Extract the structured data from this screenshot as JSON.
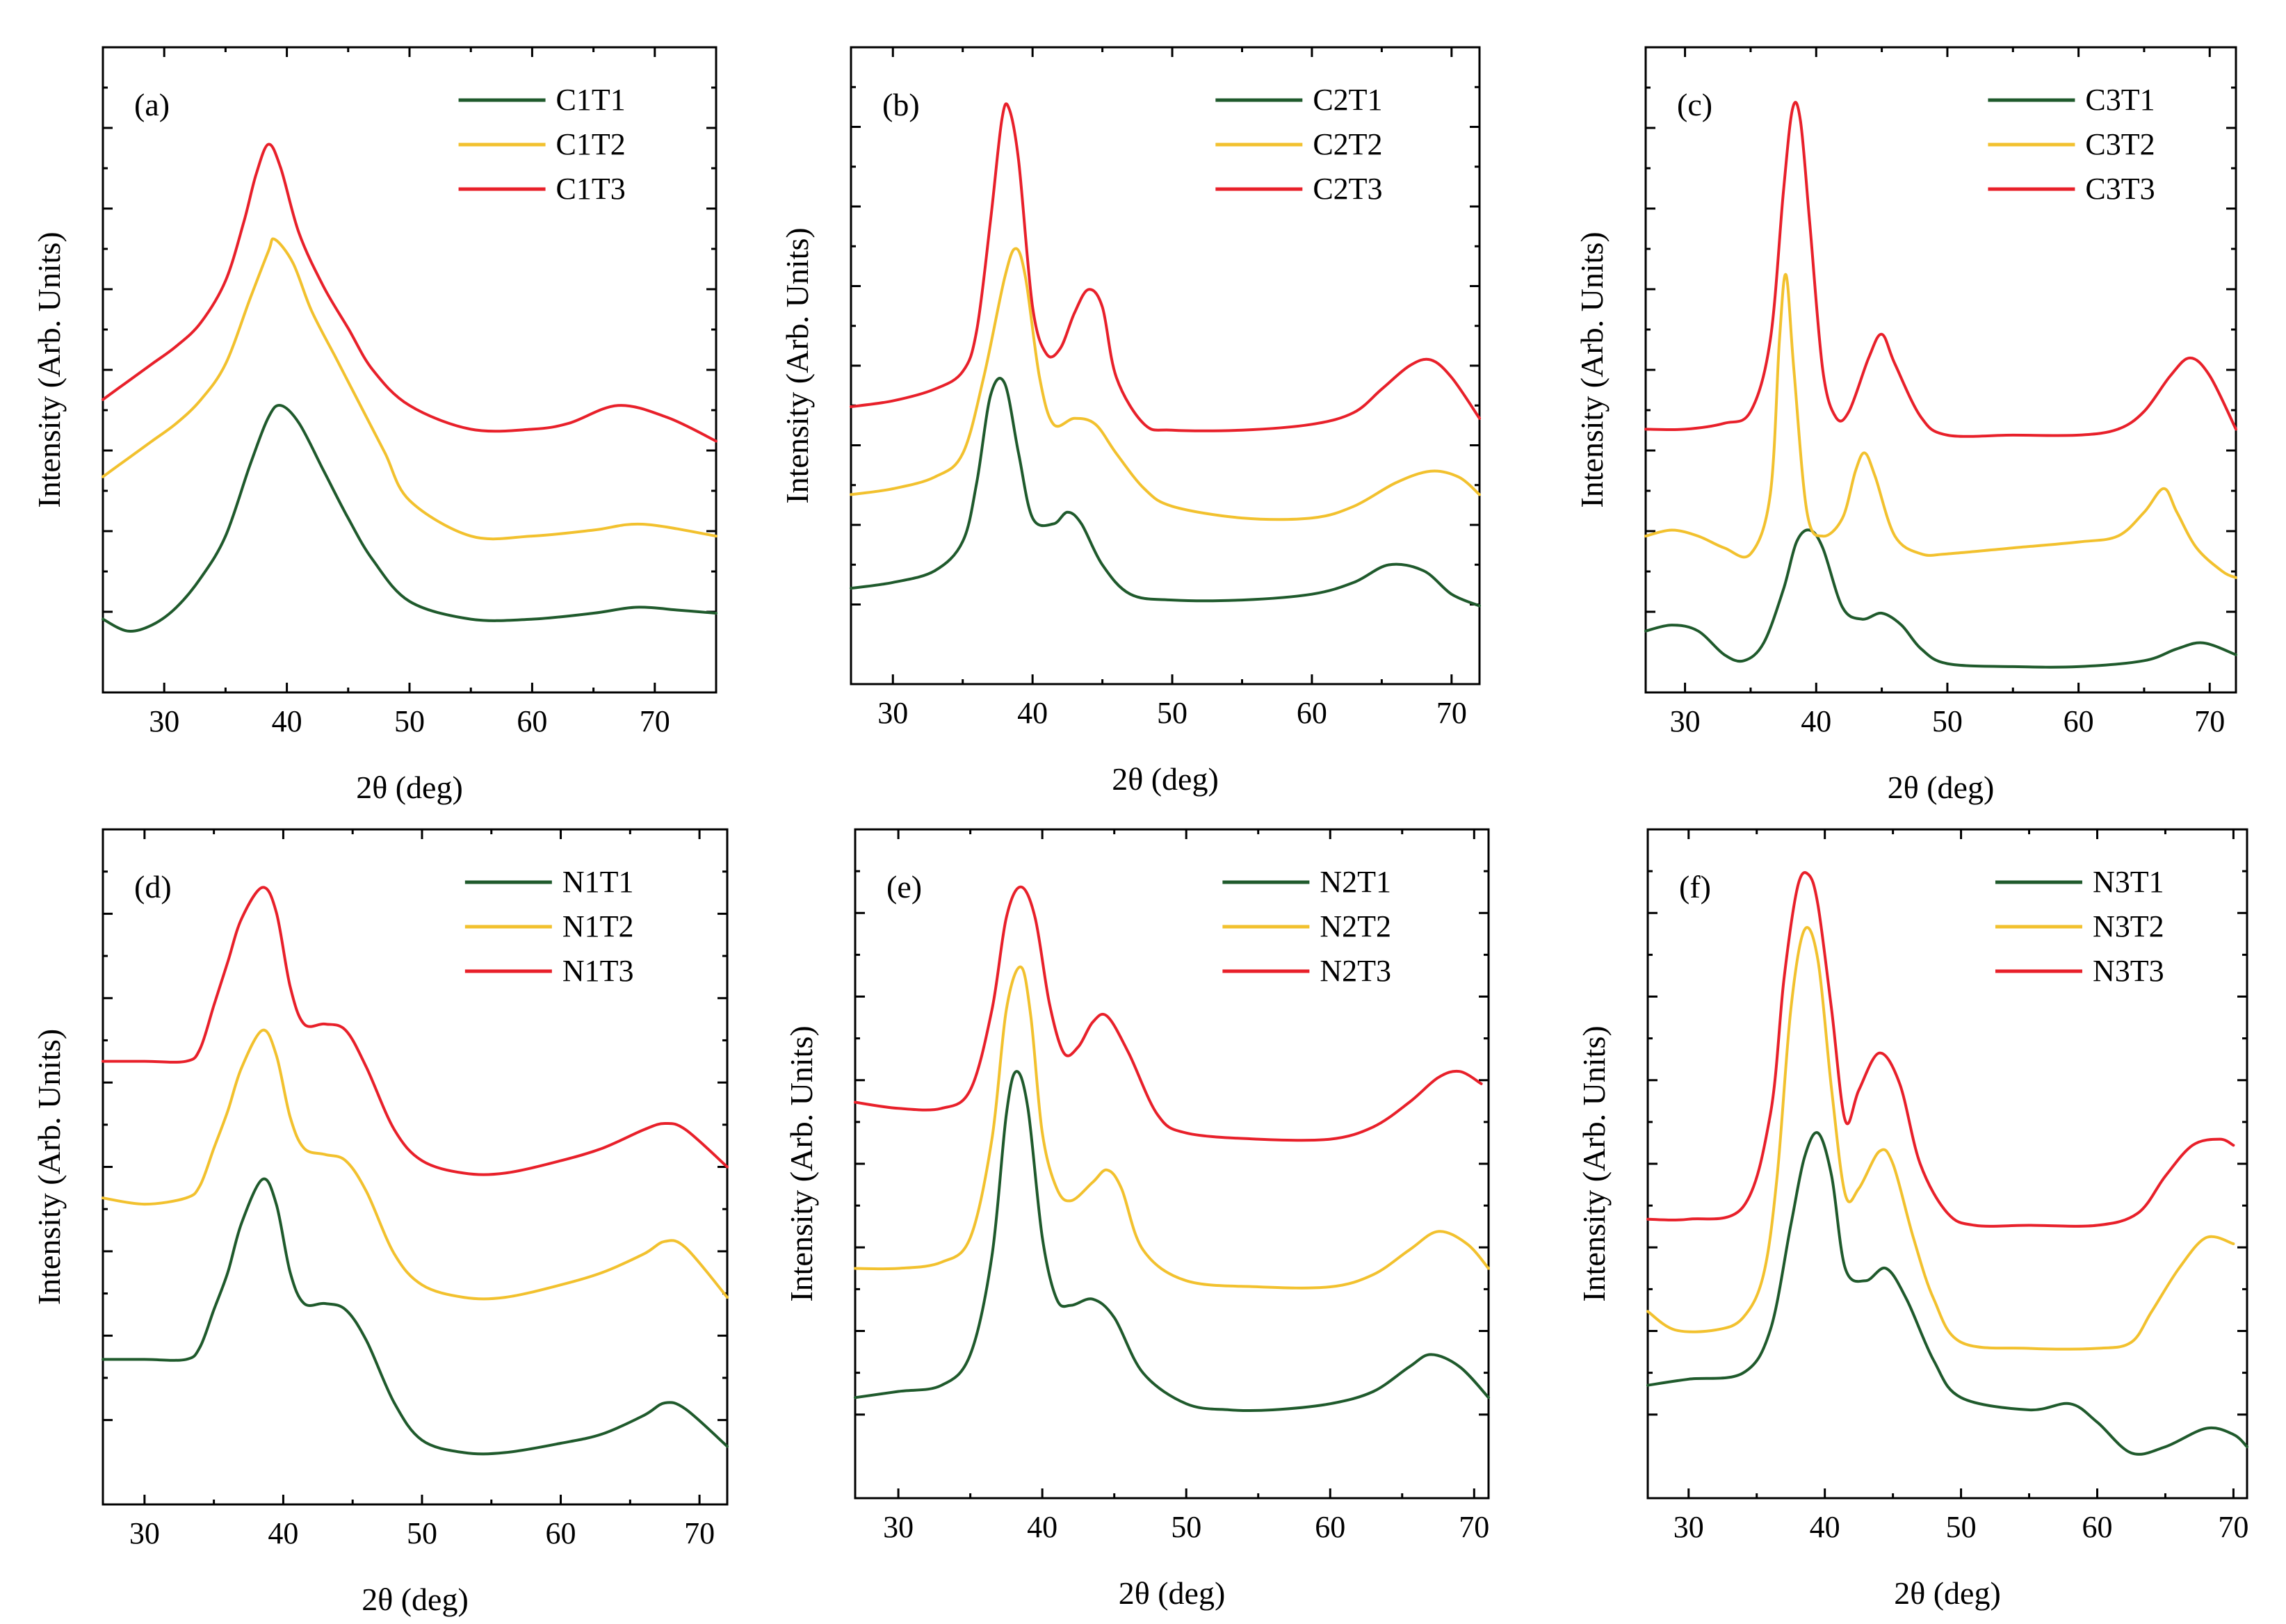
{
  "figure": {
    "x_axis_label": "2θ (deg)",
    "y_axis_label": "Intensity (Arb. Units)"
  },
  "colors": {
    "T1": "#1f5a2c",
    "T2": "#f2c12e",
    "T3": "#e8202a"
  },
  "chart_data": [
    {
      "panel_label": "(a)",
      "type": "line",
      "xlabel": "2θ (deg)",
      "ylabel": "Intensity (Arb. Units)",
      "xlim": [
        25,
        75
      ],
      "xticks": [
        30,
        40,
        50,
        60,
        70
      ],
      "ylim": [
        0,
        10
      ],
      "legend_position": "top-right",
      "series": [
        {
          "name": "C1T1",
          "color": "#1f5a2c",
          "x": [
            25,
            27,
            29,
            31,
            33,
            35,
            37,
            38.5,
            39.5,
            41,
            43,
            45,
            47,
            50,
            55,
            60,
            65,
            68.5,
            72,
            75
          ],
          "y": [
            0.8,
            0.6,
            0.7,
            1.0,
            1.5,
            2.2,
            3.4,
            4.2,
            4.4,
            4.1,
            3.3,
            2.5,
            1.8,
            1.1,
            0.8,
            0.8,
            0.9,
            1.0,
            0.95,
            0.9
          ]
        },
        {
          "name": "C1T2",
          "color": "#f2c12e",
          "x": [
            25,
            27,
            29,
            31,
            33,
            35,
            37,
            38.5,
            39,
            40.5,
            42,
            44,
            46,
            48,
            50,
            55,
            60,
            65,
            69,
            75
          ],
          "y": [
            3.2,
            3.5,
            3.8,
            4.1,
            4.5,
            5.1,
            6.2,
            7.0,
            7.2,
            6.8,
            6.0,
            5.2,
            4.4,
            3.6,
            2.8,
            2.2,
            2.2,
            2.3,
            2.4,
            2.2
          ]
        },
        {
          "name": "C1T3",
          "color": "#e8202a",
          "x": [
            25,
            27,
            29,
            31,
            33,
            35,
            36.5,
            37.5,
            38.5,
            39.5,
            41,
            43,
            45,
            47,
            50,
            55,
            60,
            63,
            67,
            71,
            75
          ],
          "y": [
            4.5,
            4.8,
            5.1,
            5.4,
            5.8,
            6.5,
            7.5,
            8.3,
            8.8,
            8.4,
            7.3,
            6.4,
            5.7,
            5.0,
            4.4,
            4.0,
            4.0,
            4.1,
            4.4,
            4.2,
            3.8
          ]
        }
      ]
    },
    {
      "panel_label": "(b)",
      "type": "line",
      "xlabel": "2θ (deg)",
      "ylabel": "Intensity (Arb. Units)",
      "xlim": [
        27,
        72
      ],
      "xticks": [
        30,
        40,
        50,
        60,
        70
      ],
      "ylim": [
        0,
        10
      ],
      "legend_position": "top-right",
      "series": [
        {
          "name": "C2T1",
          "color": "#1f5a2c",
          "x": [
            27,
            30,
            33,
            35,
            36,
            37,
            38,
            39,
            40,
            41.5,
            42.5,
            43.5,
            45,
            47,
            50,
            55,
            60,
            63,
            65.5,
            68,
            70,
            72
          ],
          "y": [
            1.2,
            1.3,
            1.5,
            2.0,
            3.0,
            4.5,
            4.7,
            3.5,
            2.4,
            2.3,
            2.5,
            2.3,
            1.6,
            1.1,
            1.0,
            1.0,
            1.1,
            1.3,
            1.6,
            1.5,
            1.1,
            0.9
          ]
        },
        {
          "name": "C2T2",
          "color": "#f2c12e",
          "x": [
            27,
            30,
            33,
            35,
            36.5,
            38,
            38.8,
            39.5,
            40.5,
            41.5,
            43,
            44.5,
            46,
            48,
            50,
            55,
            60,
            63,
            66,
            68.5,
            70.5,
            72
          ],
          "y": [
            2.8,
            2.9,
            3.1,
            3.5,
            4.8,
            6.5,
            7.0,
            6.5,
            4.8,
            4.0,
            4.1,
            4.0,
            3.5,
            2.9,
            2.6,
            2.4,
            2.4,
            2.6,
            3.0,
            3.2,
            3.1,
            2.8
          ]
        },
        {
          "name": "C2T3",
          "color": "#e8202a",
          "x": [
            27,
            30,
            33,
            35,
            36,
            37,
            37.8,
            38.3,
            39,
            40,
            41,
            42,
            43,
            44,
            45,
            46,
            48,
            50,
            55,
            60,
            63,
            65,
            67,
            68.5,
            70,
            72
          ],
          "y": [
            4.3,
            4.4,
            4.6,
            4.9,
            5.6,
            7.5,
            9.2,
            9.4,
            8.5,
            6.0,
            5.2,
            5.3,
            5.9,
            6.3,
            6.0,
            4.8,
            4.0,
            3.9,
            3.9,
            4.0,
            4.2,
            4.6,
            5.0,
            5.1,
            4.8,
            4.1
          ]
        }
      ]
    },
    {
      "panel_label": "(c)",
      "type": "line",
      "xlabel": "2θ (deg)",
      "ylabel": "Intensity (Arb. Units)",
      "xlim": [
        27,
        72
      ],
      "xticks": [
        30,
        40,
        50,
        60,
        70
      ],
      "ylim": [
        0,
        10
      ],
      "legend_position": "top-right",
      "series": [
        {
          "name": "C3T1",
          "color": "#1f5a2c",
          "x": [
            27,
            29,
            31,
            33,
            34.5,
            36,
            37.5,
            38.5,
            39.5,
            40.5,
            42,
            43.5,
            45,
            46.5,
            48,
            50,
            55,
            60,
            65,
            67.5,
            69.5,
            72
          ],
          "y": [
            0.6,
            0.7,
            0.6,
            0.2,
            0.1,
            0.4,
            1.3,
            2.1,
            2.3,
            2.0,
            1.0,
            0.8,
            0.9,
            0.7,
            0.3,
            0.05,
            0.0,
            0.0,
            0.1,
            0.3,
            0.4,
            0.2
          ]
        },
        {
          "name": "C3T2",
          "color": "#f2c12e",
          "x": [
            27,
            29,
            31,
            33,
            35,
            36.5,
            37.2,
            37.7,
            38.3,
            39.3,
            40.5,
            42,
            43,
            43.7,
            44.5,
            46,
            48,
            50,
            55,
            60,
            63,
            65,
            66.5,
            67.5,
            69,
            71,
            72
          ],
          "y": [
            2.2,
            2.3,
            2.2,
            2.0,
            1.9,
            2.9,
            5.5,
            6.6,
            5.0,
            2.6,
            2.2,
            2.5,
            3.3,
            3.6,
            3.2,
            2.2,
            1.9,
            1.9,
            2.0,
            2.1,
            2.2,
            2.6,
            3.0,
            2.6,
            2.0,
            1.6,
            1.5
          ]
        },
        {
          "name": "C3T3",
          "color": "#e8202a",
          "x": [
            27,
            30,
            33,
            35,
            36.5,
            37.5,
            38.2,
            38.8,
            39.5,
            40.5,
            41.5,
            42.5,
            44,
            45,
            46,
            48,
            50,
            55,
            60,
            63,
            65,
            67,
            68.5,
            70,
            72
          ],
          "y": [
            4.0,
            4.0,
            4.1,
            4.3,
            5.5,
            8.0,
            9.4,
            9.2,
            7.5,
            5.0,
            4.2,
            4.3,
            5.2,
            5.6,
            5.1,
            4.2,
            3.9,
            3.9,
            3.9,
            4.0,
            4.3,
            4.9,
            5.2,
            4.9,
            4.0
          ]
        }
      ]
    },
    {
      "panel_label": "(d)",
      "type": "line",
      "xlabel": "2θ (deg)",
      "ylabel": "Intensity (Arb. Units)",
      "xlim": [
        27,
        72
      ],
      "xticks": [
        30,
        40,
        50,
        60,
        70
      ],
      "ylim": [
        0,
        10
      ],
      "legend_position": "top-right",
      "series": [
        {
          "name": "N1T1",
          "color": "#1f5a2c",
          "x": [
            27,
            30,
            33,
            34,
            35,
            36,
            37,
            38.5,
            39.5,
            40.5,
            41.5,
            43,
            44.5,
            46,
            48,
            50,
            53,
            56,
            60,
            63,
            66,
            67.5,
            69,
            72
          ],
          "y": [
            1.9,
            1.9,
            1.9,
            2.1,
            2.7,
            3.3,
            4.1,
            4.8,
            4.4,
            3.3,
            2.8,
            2.8,
            2.7,
            2.2,
            1.2,
            0.6,
            0.4,
            0.4,
            0.55,
            0.7,
            1.0,
            1.2,
            1.1,
            0.5
          ]
        },
        {
          "name": "N1T2",
          "color": "#f2c12e",
          "x": [
            27,
            30,
            33,
            34,
            35,
            36,
            37,
            38.5,
            39.5,
            40.5,
            41.5,
            43,
            44.5,
            46,
            48,
            50,
            53,
            56,
            60,
            63,
            66,
            67.5,
            69,
            72
          ],
          "y": [
            4.5,
            4.4,
            4.5,
            4.7,
            5.3,
            5.9,
            6.6,
            7.2,
            6.8,
            5.8,
            5.3,
            5.2,
            5.1,
            4.6,
            3.6,
            3.1,
            2.9,
            2.9,
            3.1,
            3.3,
            3.6,
            3.8,
            3.7,
            2.9
          ]
        },
        {
          "name": "N1T3",
          "color": "#e8202a",
          "x": [
            27,
            30,
            33,
            34,
            35,
            36,
            37,
            38.5,
            39.5,
            40.5,
            41.5,
            43,
            44.5,
            46,
            48,
            50,
            53,
            56,
            60,
            63,
            66,
            67.5,
            69,
            72
          ],
          "y": [
            6.7,
            6.7,
            6.7,
            6.9,
            7.6,
            8.3,
            9.0,
            9.5,
            9.1,
            7.9,
            7.3,
            7.3,
            7.2,
            6.6,
            5.6,
            5.1,
            4.9,
            4.9,
            5.1,
            5.3,
            5.6,
            5.7,
            5.6,
            5.0
          ]
        }
      ]
    },
    {
      "panel_label": "(e)",
      "type": "line",
      "xlabel": "2θ (deg)",
      "ylabel": "Intensity (Arb. Units)",
      "xlim": [
        27,
        71
      ],
      "xticks": [
        30,
        40,
        50,
        60,
        70
      ],
      "ylim": [
        0,
        10
      ],
      "legend_position": "top-right",
      "series": [
        {
          "name": "N2T1",
          "color": "#1f5a2c",
          "x": [
            27,
            30,
            33,
            35,
            36.5,
            37.5,
            38.2,
            39,
            40,
            41,
            42,
            43.5,
            45,
            47,
            50,
            53,
            56,
            60,
            63,
            65.5,
            67,
            69,
            71
          ],
          "y": [
            1.2,
            1.3,
            1.4,
            1.9,
            3.5,
            5.8,
            6.5,
            5.9,
            3.8,
            2.8,
            2.7,
            2.8,
            2.5,
            1.6,
            1.1,
            1.0,
            1.0,
            1.1,
            1.3,
            1.7,
            1.9,
            1.7,
            1.2
          ]
        },
        {
          "name": "N2T2",
          "color": "#f2c12e",
          "x": [
            27,
            30,
            33,
            35,
            36.5,
            37.5,
            38.5,
            39.2,
            40,
            41,
            42,
            43.5,
            44.5,
            45.5,
            47,
            50,
            55,
            60,
            63,
            65.5,
            67.5,
            69.5,
            71
          ],
          "y": [
            3.3,
            3.3,
            3.4,
            3.8,
            5.4,
            7.5,
            8.2,
            7.4,
            5.5,
            4.6,
            4.4,
            4.7,
            4.9,
            4.6,
            3.6,
            3.1,
            3.0,
            3.0,
            3.2,
            3.6,
            3.9,
            3.7,
            3.3
          ]
        },
        {
          "name": "N2T3",
          "color": "#e8202a",
          "x": [
            27,
            30,
            33,
            35,
            36.5,
            37.5,
            38.5,
            39.5,
            40.5,
            41.5,
            42.5,
            43.5,
            44.5,
            46,
            48,
            50,
            55,
            60,
            63,
            65.5,
            67.5,
            69,
            70.5
          ],
          "y": [
            6.0,
            5.9,
            5.9,
            6.2,
            7.5,
            9.0,
            9.5,
            9.0,
            7.6,
            6.8,
            6.9,
            7.3,
            7.4,
            6.8,
            5.8,
            5.5,
            5.4,
            5.4,
            5.6,
            6.0,
            6.4,
            6.5,
            6.3
          ]
        }
      ]
    },
    {
      "panel_label": "(f)",
      "type": "line",
      "xlabel": "2θ (deg)",
      "ylabel": "Intensity (Arb. Units)",
      "xlim": [
        27,
        71
      ],
      "xticks": [
        30,
        40,
        50,
        60,
        70
      ],
      "ylim": [
        0,
        10
      ],
      "legend_position": "top-right",
      "series": [
        {
          "name": "N3T1",
          "color": "#1f5a2c",
          "x": [
            27,
            30,
            34,
            36,
            37.5,
            38.5,
            39.5,
            40.5,
            41.5,
            43,
            44.5,
            46,
            48,
            50,
            55,
            58,
            60,
            62.5,
            65,
            68,
            70,
            71
          ],
          "y": [
            1.4,
            1.5,
            1.6,
            2.3,
            4.0,
            5.1,
            5.5,
            4.8,
            3.3,
            3.1,
            3.3,
            2.8,
            1.8,
            1.2,
            1.0,
            1.1,
            0.8,
            0.3,
            0.4,
            0.7,
            0.6,
            0.4
          ]
        },
        {
          "name": "N3T2",
          "color": "#f2c12e",
          "x": [
            27,
            29,
            32,
            34,
            35.5,
            36.5,
            37.5,
            38.5,
            39.5,
            40.5,
            41.5,
            42.5,
            44,
            45,
            46.5,
            48,
            50,
            55,
            60,
            62.5,
            64,
            66,
            68,
            70
          ],
          "y": [
            2.6,
            2.3,
            2.3,
            2.5,
            3.2,
            4.8,
            7.5,
            8.8,
            8.3,
            6.2,
            4.5,
            4.6,
            5.2,
            5.0,
            3.8,
            2.8,
            2.1,
            2.0,
            2.0,
            2.1,
            2.6,
            3.3,
            3.8,
            3.7
          ]
        },
        {
          "name": "N3T3",
          "color": "#e8202a",
          "x": [
            27,
            30,
            34,
            36,
            37,
            38,
            38.8,
            39.5,
            40.5,
            41.5,
            42.5,
            44,
            45.5,
            47,
            49,
            51,
            55,
            60,
            63,
            65,
            67,
            69,
            70
          ],
          "y": [
            4.1,
            4.1,
            4.3,
            5.8,
            8.0,
            9.5,
            9.7,
            9.2,
            7.5,
            5.7,
            6.2,
            6.8,
            6.3,
            5.0,
            4.2,
            4.0,
            4.0,
            4.0,
            4.2,
            4.8,
            5.3,
            5.4,
            5.3
          ]
        }
      ]
    }
  ]
}
